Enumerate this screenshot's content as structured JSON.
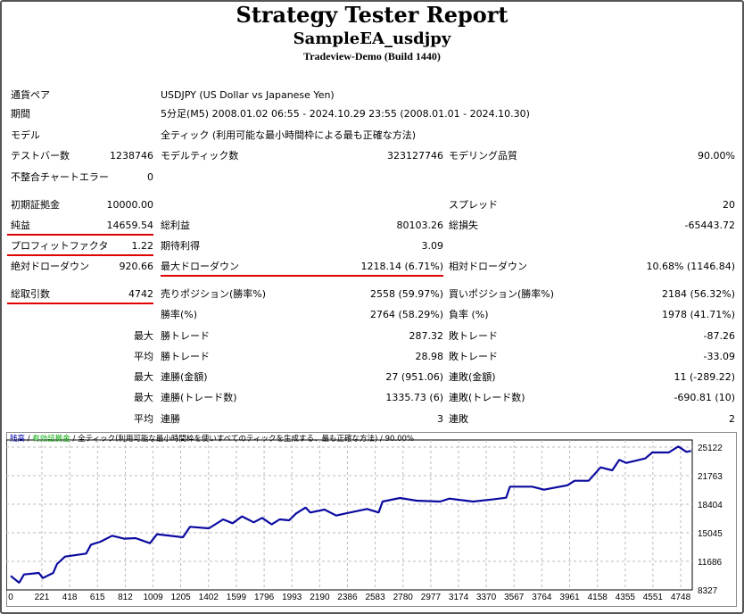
{
  "header": {
    "title": "Strategy Tester Report",
    "ea_name": "SampleEA_usdjpy",
    "server": "Tradeview-Demo (Build 1440)"
  },
  "info": [
    {
      "label": "通貨ペア",
      "value": "USDJPY (US Dollar vs Japanese Yen)"
    },
    {
      "label": "期間",
      "value": "5分足(M5) 2008.01.02 06:55 - 2024.10.29 23:55 (2008.01.01 - 2024.10.30)"
    },
    {
      "label": "モデル",
      "value": "全ティック (利用可能な最小時間枠による最も正確な方法)"
    }
  ],
  "rows": [
    {
      "l1": "テストバー数",
      "v1": "1238746",
      "l2": "モデルティック数",
      "v2": "323127746",
      "l3": "モデリング品質",
      "v3": "90.00%"
    },
    {
      "l1": "不整合チャートエラー",
      "v1": "0"
    },
    {
      "l1": "初期証拠金",
      "v1": "10000.00",
      "l3": "スプレッド",
      "v3": "20"
    },
    {
      "l1": "純益",
      "v1": "14659.54",
      "l2": "総利益",
      "v2": "80103.26",
      "l3": "総損失",
      "v3": "-65443.72"
    },
    {
      "l1": "プロフィットファクタ",
      "v1": "1.22",
      "l2": "期待利得",
      "v2": "3.09"
    },
    {
      "l1": "絶対ドローダウン",
      "v1": "920.66",
      "l2": "最大ドローダウン",
      "v2": "1218.14 (6.71%)",
      "l3": "相対ドローダウン",
      "v3": "10.68% (1146.84)"
    },
    {
      "l1": "総取引数",
      "v1": "4742",
      "l2": "売りポジション(勝率%)",
      "v2": "2558 (59.97%)",
      "l3": "買いポジション(勝率%)",
      "v3": "2184 (56.32%)"
    },
    {
      "l2": "勝率(%)",
      "v2": "2764 (58.29%)",
      "l3": "負率 (%)",
      "v3": "1978 (41.71%)"
    },
    {
      "pre": "最大",
      "l2": "勝トレード",
      "v2": "287.32",
      "l3": "敗トレード",
      "v3": "-87.26"
    },
    {
      "pre": "平均",
      "l2": "勝トレード",
      "v2": "28.98",
      "l3": "敗トレード",
      "v3": "-33.09"
    },
    {
      "pre": "最大",
      "l2": "連勝(金額)",
      "v2": "27 (951.06)",
      "l3": "連敗(金額)",
      "v3": "11 (-289.22)"
    },
    {
      "pre": "最大",
      "l2": "連勝(トレード数)",
      "v2": "1335.73 (6)",
      "l3": "連敗(トレード数)",
      "v3": "-690.81 (10)"
    },
    {
      "pre": "平均",
      "l2": "連勝",
      "v2": "3",
      "l3": "連敗",
      "v3": "2"
    }
  ],
  "chart_data": {
    "type": "line",
    "legend": [
      "残高",
      "有効証拠金",
      "全ティック(利用可能な最小時間枠を使いすべてのティックを生成する、最も正確な方法)",
      "90.00%"
    ],
    "legend_colors": [
      "#0000aa",
      "#00aa00",
      "#000000",
      "#000000"
    ],
    "line_color": "#0a0aa0",
    "x_ticks": [
      0,
      221,
      418,
      615,
      812,
      1009,
      1205,
      1402,
      1599,
      1796,
      1993,
      2190,
      2386,
      2583,
      2780,
      2977,
      3174,
      3370,
      3567,
      3764,
      3961,
      4158,
      4355,
      4551,
      4748
    ],
    "y_ticks": [
      8327,
      11686,
      15045,
      18404,
      21763,
      25122
    ],
    "xlim": [
      0,
      4830
    ],
    "ylim": [
      8327,
      25122
    ],
    "grid": true,
    "series": [
      {
        "name": "残高",
        "x": [
          0,
          60,
          94,
          200,
          227,
          301,
          328,
          385,
          535,
          569,
          636,
          719,
          803,
          886,
          987,
          1037,
          1221,
          1271,
          1405,
          1505,
          1572,
          1639,
          1722,
          1782,
          1849,
          1906,
          1973,
          2023,
          2090,
          2123,
          2224,
          2307,
          2374,
          2525,
          2608,
          2635,
          2759,
          2876,
          3043,
          3110,
          3277,
          3411,
          3511,
          3538,
          3695,
          3779,
          3946,
          3996,
          4096,
          4180,
          4263,
          4313,
          4363,
          4497,
          4547,
          4664,
          4731,
          4788,
          4822
        ],
        "y": [
          9972,
          9167,
          10147,
          10322,
          9727,
          10322,
          11372,
          12247,
          12597,
          13647,
          13997,
          14697,
          14347,
          14417,
          13822,
          14872,
          14522,
          15747,
          15572,
          16622,
          16167,
          16972,
          16272,
          16797,
          16027,
          16622,
          16517,
          17319,
          18019,
          17424,
          17774,
          17074,
          17319,
          17844,
          17424,
          18719,
          19139,
          18824,
          18719,
          19069,
          18719,
          18964,
          19174,
          20469,
          20469,
          20119,
          20644,
          21169,
          21169,
          22742,
          22393,
          23617,
          23267,
          23792,
          24492,
          24492,
          25192,
          24562,
          24667
        ]
      }
    ]
  }
}
